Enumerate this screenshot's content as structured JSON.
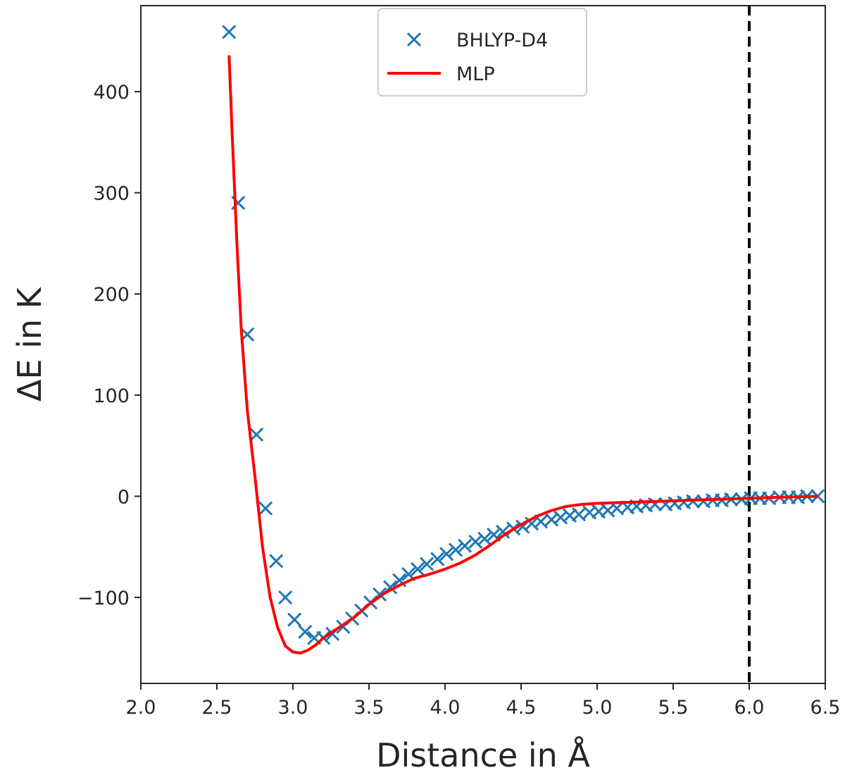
{
  "chart_data": {
    "type": "line",
    "title": "",
    "xlabel": "Distance in Å",
    "ylabel": "ΔE in K",
    "xlim": [
      2.0,
      6.5
    ],
    "ylim": [
      -185,
      485
    ],
    "xticks": [
      2.0,
      2.5,
      3.0,
      3.5,
      4.0,
      4.5,
      5.0,
      5.5,
      6.0,
      6.5
    ],
    "xtick_labels": [
      "2.0",
      "2.5",
      "3.0",
      "3.5",
      "4.0",
      "4.5",
      "5.0",
      "5.5",
      "6.0",
      "6.5"
    ],
    "yticks": [
      -100,
      0,
      100,
      200,
      300,
      400
    ],
    "ytick_labels": [
      "−100",
      "0",
      "100",
      "200",
      "300",
      "400"
    ],
    "grid": false,
    "legend_position": "top-center",
    "cutoff_line": {
      "x": 6.0,
      "style": "dashed",
      "color": "#000000"
    },
    "series": [
      {
        "name": "BHLYP-D4",
        "kind": "scatter",
        "marker": "x",
        "color": "#1f77b4",
        "x": [
          2.58,
          2.64,
          2.7,
          2.76,
          2.82,
          2.89,
          2.95,
          3.01,
          3.08,
          3.14,
          3.2,
          3.26,
          3.33,
          3.39,
          3.45,
          3.51,
          3.57,
          3.64,
          3.7,
          3.76,
          3.82,
          3.88,
          3.95,
          4.01,
          4.07,
          4.13,
          4.2,
          4.26,
          4.32,
          4.38,
          4.45,
          4.51,
          4.57,
          4.63,
          4.7,
          4.76,
          4.82,
          4.88,
          4.95,
          5.01,
          5.07,
          5.13,
          5.2,
          5.26,
          5.32,
          5.38,
          5.45,
          5.51,
          5.57,
          5.63,
          5.7,
          5.76,
          5.82,
          5.88,
          5.95,
          6.01,
          6.07,
          6.13,
          6.2,
          6.26,
          6.32,
          6.38,
          6.45
        ],
        "y": [
          459,
          290,
          160,
          61,
          -12,
          -64,
          -100,
          -122,
          -134,
          -140,
          -140,
          -136,
          -129,
          -121,
          -113,
          -105,
          -97,
          -90,
          -83,
          -77,
          -72,
          -67,
          -62,
          -57,
          -53,
          -49,
          -45,
          -42,
          -38,
          -35,
          -32,
          -30,
          -27,
          -25,
          -23,
          -21,
          -19,
          -18,
          -16,
          -15,
          -14,
          -12,
          -11,
          -10,
          -9,
          -8,
          -8,
          -7,
          -6,
          -5,
          -5,
          -4,
          -4,
          -3,
          -3,
          -2,
          -2,
          -2,
          -1,
          -1,
          -1,
          0,
          0
        ]
      },
      {
        "name": "MLP",
        "kind": "line",
        "color": "#ff0000",
        "x": [
          2.58,
          2.6,
          2.63,
          2.66,
          2.7,
          2.75,
          2.8,
          2.85,
          2.9,
          2.95,
          3.0,
          3.05,
          3.1,
          3.15,
          3.2,
          3.25,
          3.3,
          3.4,
          3.5,
          3.6,
          3.7,
          3.8,
          3.9,
          4.0,
          4.1,
          4.2,
          4.3,
          4.4,
          4.5,
          4.6,
          4.7,
          4.8,
          4.9,
          5.0,
          5.2,
          5.4,
          5.6,
          5.8,
          6.0,
          6.2,
          6.45
        ],
        "y": [
          436,
          360,
          255,
          165,
          85,
          20,
          -50,
          -100,
          -130,
          -148,
          -154,
          -155,
          -152,
          -147,
          -140,
          -135,
          -130,
          -120,
          -107,
          -96,
          -88,
          -81,
          -77,
          -72,
          -66,
          -58,
          -48,
          -37,
          -28,
          -20,
          -14,
          -10,
          -8,
          -7,
          -6,
          -5,
          -4,
          -3,
          -2,
          -1,
          0
        ]
      }
    ]
  }
}
